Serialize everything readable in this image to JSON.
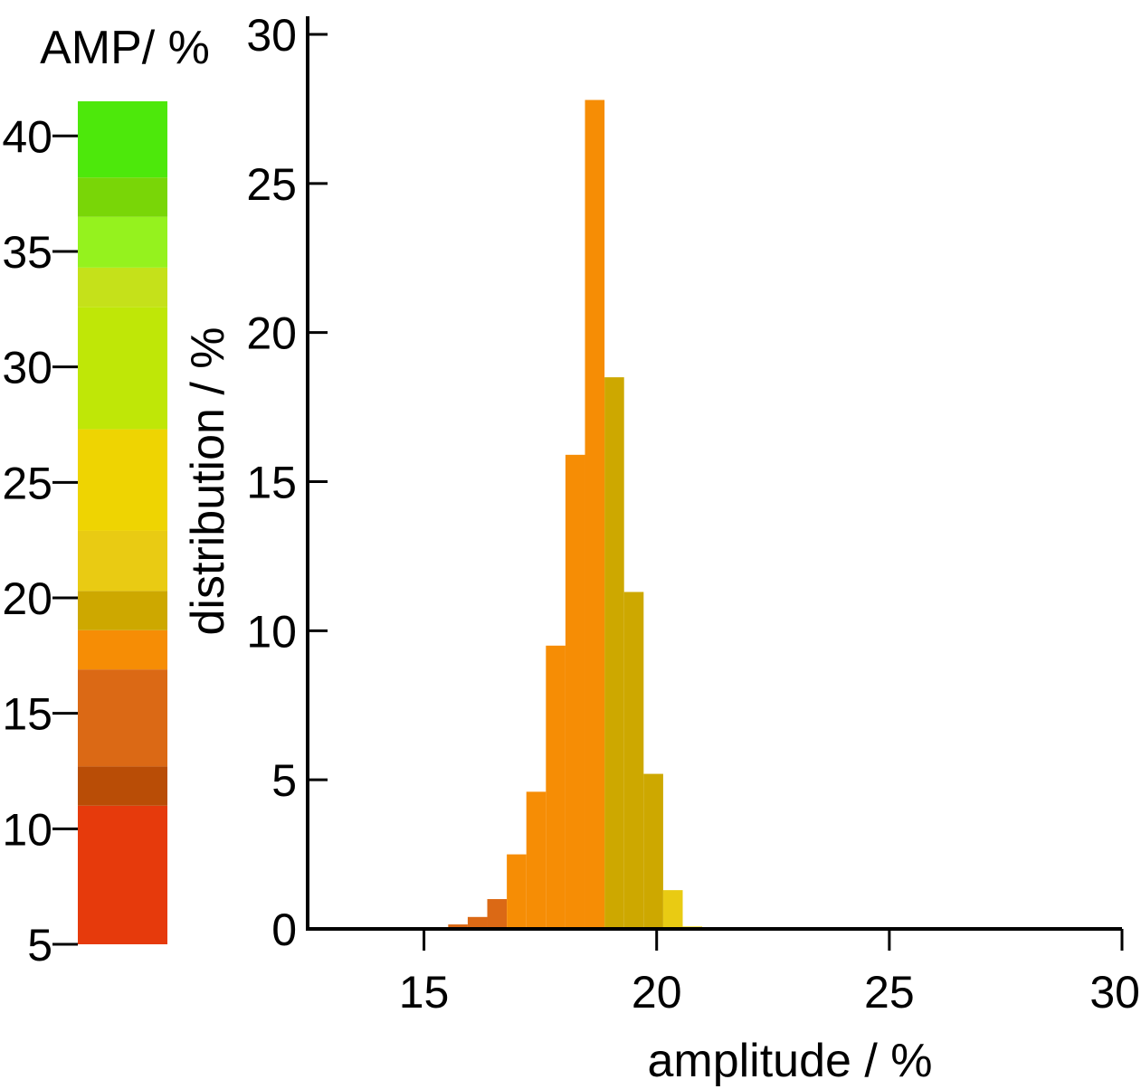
{
  "chart_data": [
    {
      "type": "colorbar",
      "title": "AMP/ %",
      "range": [
        5,
        41.5
      ],
      "ticks": [
        "5",
        "10",
        "15",
        "20",
        "25",
        "30",
        "35",
        "40"
      ],
      "tick_values": [
        5,
        10,
        15,
        20,
        25,
        30,
        35,
        40
      ],
      "bands": [
        {
          "from": 5,
          "to": 11,
          "color": "#e63a0c"
        },
        {
          "from": 11,
          "to": 12.7,
          "color": "#b94d06"
        },
        {
          "from": 12.7,
          "to": 16.9,
          "color": "#db6915"
        },
        {
          "from": 16.9,
          "to": 18.6,
          "color": "#f68d05"
        },
        {
          "from": 18.6,
          "to": 20.3,
          "color": "#cda800"
        },
        {
          "from": 20.3,
          "to": 22.9,
          "color": "#e9cb13"
        },
        {
          "from": 22.9,
          "to": 27.3,
          "color": "#eed402"
        },
        {
          "from": 27.3,
          "to": 32.6,
          "color": "#bfe707"
        },
        {
          "from": 32.6,
          "to": 34.3,
          "color": "#c5e11a"
        },
        {
          "from": 34.3,
          "to": 36.5,
          "color": "#95f21e"
        },
        {
          "from": 36.5,
          "to": 38.2,
          "color": "#79d607"
        },
        {
          "from": 38.2,
          "to": 41.5,
          "color": "#4de80b"
        }
      ]
    },
    {
      "type": "bar",
      "xlabel": "amplitude / %",
      "ylabel": "distribution / %",
      "xlim": [
        12.5,
        30
      ],
      "ylim": [
        0,
        30
      ],
      "x_ticks": [
        "15",
        "20",
        "25",
        "30"
      ],
      "x_tick_values": [
        15,
        20,
        25,
        30
      ],
      "y_ticks": [
        "0",
        "5",
        "10",
        "15",
        "20",
        "25",
        "30"
      ],
      "y_tick_values": [
        0,
        5,
        10,
        15,
        20,
        25,
        30
      ],
      "bin_width": 0.42,
      "bars": [
        {
          "x": 15.1,
          "value": 0.05,
          "color": "#db6915"
        },
        {
          "x": 15.52,
          "value": 0.15,
          "color": "#db6915"
        },
        {
          "x": 15.94,
          "value": 0.4,
          "color": "#db6915"
        },
        {
          "x": 16.36,
          "value": 1.0,
          "color": "#db6915"
        },
        {
          "x": 16.78,
          "value": 2.5,
          "color": "#f68d05"
        },
        {
          "x": 17.2,
          "value": 4.6,
          "color": "#f68d05"
        },
        {
          "x": 17.62,
          "value": 9.5,
          "color": "#f68d05"
        },
        {
          "x": 18.04,
          "value": 15.9,
          "color": "#f68d05"
        },
        {
          "x": 18.46,
          "value": 27.8,
          "color": "#f68d05"
        },
        {
          "x": 18.88,
          "value": 18.5,
          "color": "#cda800"
        },
        {
          "x": 19.3,
          "value": 11.3,
          "color": "#cda800"
        },
        {
          "x": 19.72,
          "value": 5.2,
          "color": "#cda800"
        },
        {
          "x": 20.14,
          "value": 1.3,
          "color": "#e9cb13"
        },
        {
          "x": 20.56,
          "value": 0.08,
          "color": "#eed402"
        }
      ]
    }
  ]
}
